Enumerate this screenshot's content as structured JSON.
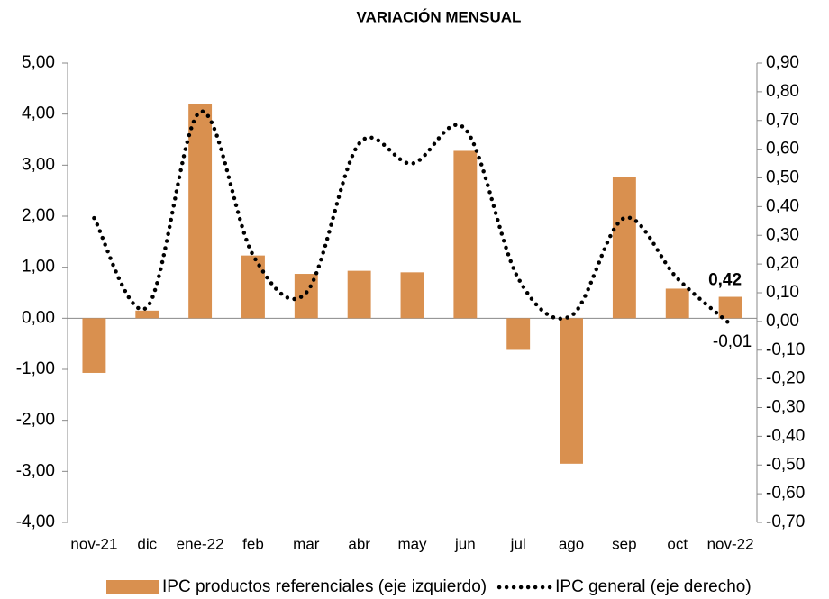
{
  "chart_data": {
    "type": "bar-line",
    "title": "VARIACIÓN MENSUAL",
    "categories": [
      "nov-21",
      "dic",
      "ene-22",
      "feb",
      "mar",
      "abr",
      "may",
      "jun",
      "jul",
      "ago",
      "sep",
      "oct",
      "nov-22"
    ],
    "series": [
      {
        "name": "IPC productos referenciales (eje izquierdo)",
        "color": "#d9904f",
        "type": "bar",
        "axis": "y",
        "values": [
          -1.07,
          0.15,
          4.2,
          1.23,
          0.87,
          0.93,
          0.9,
          3.28,
          -0.62,
          -2.85,
          2.76,
          0.58,
          0.42
        ],
        "value_labels": [
          null,
          null,
          null,
          null,
          null,
          null,
          null,
          null,
          null,
          null,
          null,
          null,
          "0,42"
        ]
      },
      {
        "name": "IPC general (eje derecho)",
        "color": "#000000",
        "type": "line",
        "axis": "y2",
        "values": [
          0.36,
          0.05,
          0.73,
          0.23,
          0.1,
          0.62,
          0.55,
          0.67,
          0.15,
          0.02,
          0.36,
          0.15,
          -0.01
        ],
        "value_labels": [
          null,
          null,
          null,
          null,
          null,
          null,
          null,
          null,
          null,
          null,
          null,
          null,
          "-0,01"
        ]
      }
    ],
    "ylim": [
      -4,
      5
    ],
    "yticks": [
      {
        "value": -4,
        "label": "-4,00"
      },
      {
        "value": -3,
        "label": "-3,00"
      },
      {
        "value": -2,
        "label": "-2,00"
      },
      {
        "value": -1,
        "label": "-1,00"
      },
      {
        "value": 0,
        "label": "0,00"
      },
      {
        "value": 1,
        "label": "1,00"
      },
      {
        "value": 2,
        "label": "2,00"
      },
      {
        "value": 3,
        "label": "3,00"
      },
      {
        "value": 4,
        "label": "4,00"
      },
      {
        "value": 5,
        "label": "5,00"
      }
    ],
    "y2lim": [
      -0.7,
      0.9
    ],
    "y2ticks": [
      {
        "value": -0.7,
        "label": "-0,70"
      },
      {
        "value": -0.6,
        "label": "-0,60"
      },
      {
        "value": -0.5,
        "label": "-0,50"
      },
      {
        "value": -0.4,
        "label": "-0,40"
      },
      {
        "value": -0.3,
        "label": "-0,30"
      },
      {
        "value": -0.2,
        "label": "-0,20"
      },
      {
        "value": -0.1,
        "label": "-0,10"
      },
      {
        "value": 0,
        "label": "0,00"
      },
      {
        "value": 0.1,
        "label": "0,10"
      },
      {
        "value": 0.2,
        "label": "0,20"
      },
      {
        "value": 0.3,
        "label": "0,30"
      },
      {
        "value": 0.4,
        "label": "0,40"
      },
      {
        "value": 0.5,
        "label": "0,50"
      },
      {
        "value": 0.6,
        "label": "0,60"
      },
      {
        "value": 0.7,
        "label": "0,70"
      },
      {
        "value": 0.8,
        "label": "0,80"
      },
      {
        "value": 0.9,
        "label": "0,90"
      }
    ]
  }
}
